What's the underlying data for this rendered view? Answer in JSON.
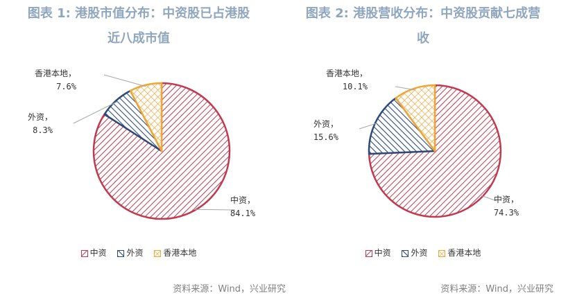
{
  "colors": {
    "china": "#c0394f",
    "foreign": "#2c4a78",
    "local": "#f0a535",
    "title": "#8fa6bf",
    "source": "#7f7f7f"
  },
  "chart_data": [
    {
      "type": "pie",
      "title_line1": "图表 1: 港股市值分布：中资股已占港股",
      "title_line2": "近八成市值",
      "categories": [
        "中资",
        "外资",
        "香港本地"
      ],
      "values": [
        84.1,
        8.3,
        7.6
      ],
      "value_labels": [
        "84.1%",
        "8.3%",
        "7.6%"
      ],
      "legend": [
        "中资",
        "外资",
        "香港本地"
      ],
      "source": "资料来源：Wind，兴业研究"
    },
    {
      "type": "pie",
      "title_line1": "图表 2: 港股营收分布：中资股贡献七成营",
      "title_line2": "收",
      "categories": [
        "中资",
        "外资",
        "香港本地"
      ],
      "values": [
        74.3,
        15.6,
        10.1
      ],
      "value_labels": [
        "74.3%",
        "15.6%",
        "10.1%"
      ],
      "legend": [
        "中资",
        "外资",
        "香港本地"
      ],
      "source": "资料来源：Wind，兴业研究"
    }
  ]
}
